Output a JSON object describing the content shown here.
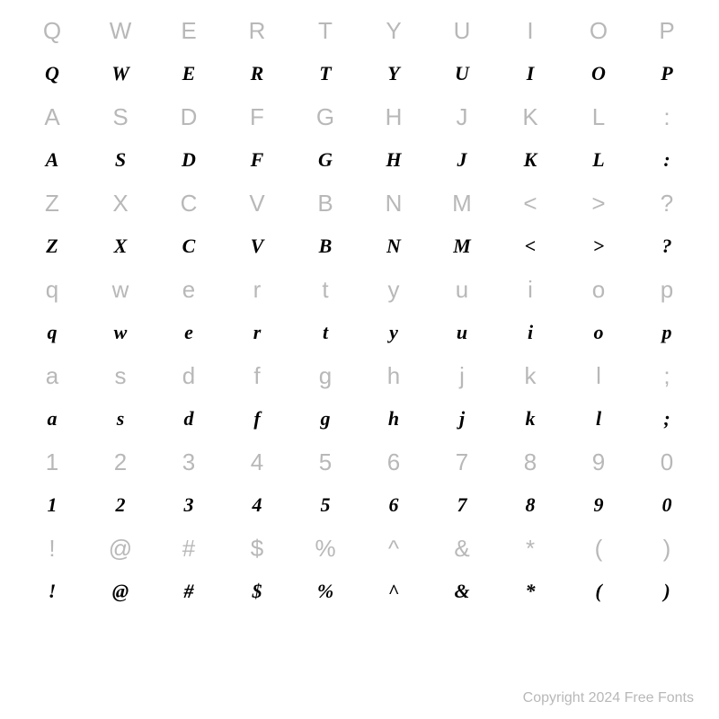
{
  "rows": [
    {
      "kind": "ref",
      "chars": [
        "Q",
        "W",
        "E",
        "R",
        "T",
        "Y",
        "U",
        "I",
        "O",
        "P"
      ]
    },
    {
      "kind": "sample",
      "chars": [
        "Q",
        "W",
        "E",
        "R",
        "T",
        "Y",
        "U",
        "I",
        "O",
        "P"
      ]
    },
    {
      "kind": "ref",
      "chars": [
        "A",
        "S",
        "D",
        "F",
        "G",
        "H",
        "J",
        "K",
        "L",
        ":"
      ]
    },
    {
      "kind": "sample",
      "chars": [
        "A",
        "S",
        "D",
        "F",
        "G",
        "H",
        "J",
        "K",
        "L",
        ":"
      ]
    },
    {
      "kind": "ref",
      "chars": [
        "Z",
        "X",
        "C",
        "V",
        "B",
        "N",
        "M",
        "<",
        ">",
        "?"
      ]
    },
    {
      "kind": "sample",
      "chars": [
        "Z",
        "X",
        "C",
        "V",
        "B",
        "N",
        "M",
        "<",
        ">",
        "?"
      ]
    },
    {
      "kind": "ref",
      "chars": [
        "q",
        "w",
        "e",
        "r",
        "t",
        "y",
        "u",
        "i",
        "o",
        "p"
      ]
    },
    {
      "kind": "sample",
      "chars": [
        "q",
        "w",
        "e",
        "r",
        "t",
        "y",
        "u",
        "i",
        "o",
        "p"
      ]
    },
    {
      "kind": "ref",
      "chars": [
        "a",
        "s",
        "d",
        "f",
        "g",
        "h",
        "j",
        "k",
        "l",
        ";"
      ]
    },
    {
      "kind": "sample",
      "chars": [
        "a",
        "s",
        "d",
        "f",
        "g",
        "h",
        "j",
        "k",
        "l",
        ";"
      ]
    },
    {
      "kind": "ref",
      "chars": [
        "1",
        "2",
        "3",
        "4",
        "5",
        "6",
        "7",
        "8",
        "9",
        "0"
      ]
    },
    {
      "kind": "sample",
      "chars": [
        "1",
        "2",
        "3",
        "4",
        "5",
        "6",
        "7",
        "8",
        "9",
        "0"
      ]
    },
    {
      "kind": "ref",
      "chars": [
        "!",
        "@",
        "#",
        "$",
        "%",
        "^",
        "&",
        "*",
        "(",
        ")"
      ]
    },
    {
      "kind": "sample",
      "chars": [
        "!",
        "@",
        "#",
        "$",
        "%",
        "^",
        "&",
        "*",
        "(",
        ")"
      ]
    }
  ],
  "copyright": "Copyright 2024 Free Fonts",
  "colors": {
    "ref": "#b8b8b8",
    "sample": "#000000",
    "background": "#ffffff"
  },
  "font_sizes": {
    "ref": 26,
    "sample": 22,
    "copyright": 16
  }
}
